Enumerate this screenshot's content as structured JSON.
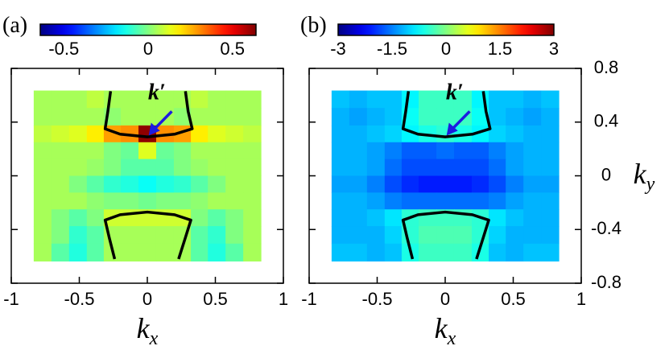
{
  "chart_data": [
    {
      "type": "heatmap",
      "panel_label": "(a)",
      "colormap": "jet",
      "xlim": [
        -1,
        1
      ],
      "ylim": [
        -0.8,
        0.8
      ],
      "xticks": [
        -1,
        -0.5,
        0,
        0.5,
        1
      ],
      "yticks": [
        -0.8,
        -0.4,
        0,
        0.4,
        0.8
      ],
      "clim": [
        -0.64,
        0.64
      ],
      "cticks": [
        -0.5,
        0,
        0.5
      ],
      "xlabel": {
        "base": "k",
        "sub": "x"
      },
      "annotation": "k′",
      "annotation_color": "#1c1ce0",
      "contour_color": "#000000",
      "x": [
        -0.77,
        -0.64,
        -0.51,
        -0.38,
        -0.26,
        -0.13,
        0,
        0.13,
        0.26,
        0.38,
        0.51,
        0.64,
        0.77
      ],
      "y": [
        0.57,
        0.44,
        0.31,
        0.19,
        0.06,
        -0.06,
        -0.19,
        -0.31,
        -0.44,
        -0.57
      ],
      "z": [
        [
          0.05,
          0.05,
          0.05,
          0.08,
          0.05,
          0.05,
          0.05,
          0.05,
          0.05,
          0.08,
          0.05,
          0.05,
          0.05
        ],
        [
          0.05,
          0.05,
          0.05,
          0.05,
          0.02,
          0.05,
          0.05,
          0.05,
          0.02,
          0.05,
          0.05,
          0.05,
          0.05
        ],
        [
          0.08,
          0.1,
          0.12,
          0.18,
          0.28,
          0.3,
          0.62,
          0.3,
          0.28,
          0.18,
          0.12,
          0.1,
          0.08
        ],
        [
          0.05,
          0.05,
          0.05,
          0.05,
          0.0,
          -0.03,
          0.12,
          -0.03,
          0.0,
          0.05,
          0.05,
          0.05,
          0.05
        ],
        [
          0.05,
          0.05,
          0.05,
          0.03,
          0.0,
          -0.05,
          -0.05,
          -0.05,
          0.0,
          0.03,
          0.05,
          0.05,
          0.05
        ],
        [
          0.05,
          0.05,
          0.0,
          -0.05,
          -0.1,
          -0.12,
          -0.15,
          -0.12,
          -0.1,
          -0.05,
          0.0,
          0.05,
          0.05
        ],
        [
          0.05,
          0.05,
          0.05,
          0.02,
          0.0,
          0.0,
          -0.02,
          0.0,
          0.0,
          0.02,
          0.05,
          0.05,
          0.05
        ],
        [
          0.05,
          0.0,
          -0.05,
          0.0,
          0.1,
          0.1,
          0.1,
          0.1,
          0.1,
          0.0,
          -0.05,
          0.0,
          0.05
        ],
        [
          0.05,
          0.0,
          -0.1,
          -0.05,
          0.05,
          0.05,
          0.05,
          0.05,
          0.05,
          -0.05,
          -0.1,
          0.0,
          0.05
        ],
        [
          0.05,
          -0.05,
          -0.12,
          -0.05,
          0.05,
          0.05,
          0.05,
          0.05,
          0.05,
          -0.05,
          -0.12,
          -0.05,
          0.05
        ]
      ],
      "contours": [
        {
          "x": [
            -0.27,
            -0.29,
            -0.31,
            -0.2,
            0,
            0.2,
            0.33,
            0.3,
            0.28
          ],
          "y": [
            0.63,
            0.48,
            0.35,
            0.31,
            0.29,
            0.31,
            0.35,
            0.48,
            0.63
          ]
        },
        {
          "x": [
            -0.24,
            -0.28,
            -0.31,
            -0.2,
            0,
            0.2,
            0.32,
            0.28,
            0.23
          ],
          "y": [
            -0.62,
            -0.46,
            -0.33,
            -0.29,
            -0.27,
            -0.29,
            -0.33,
            -0.46,
            -0.62
          ]
        }
      ]
    },
    {
      "type": "heatmap",
      "panel_label": "(b)",
      "colormap": "jet",
      "xlim": [
        -1,
        1
      ],
      "ylim": [
        -0.8,
        0.8
      ],
      "xticks": [
        -1,
        -0.5,
        0,
        0.5,
        1
      ],
      "yticks": [
        -0.8,
        -0.4,
        0,
        0.4,
        0.8
      ],
      "ytick_side": "right",
      "clim": [
        -3,
        3
      ],
      "cticks": [
        -3,
        -1.5,
        0,
        1.5,
        3
      ],
      "xlabel": {
        "base": "k",
        "sub": "x"
      },
      "ylabel": {
        "base": "k",
        "sub": "y"
      },
      "annotation": "k′",
      "annotation_color": "#1c1ce0",
      "contour_color": "#000000",
      "x": [
        -0.77,
        -0.64,
        -0.51,
        -0.38,
        -0.26,
        -0.13,
        0,
        0.13,
        0.26,
        0.38,
        0.51,
        0.64,
        0.77
      ],
      "y": [
        0.57,
        0.44,
        0.31,
        0.19,
        0.06,
        -0.06,
        -0.19,
        -0.31,
        -0.44,
        -0.57
      ],
      "z": [
        [
          -1.1,
          -1.2,
          -1.1,
          -1.1,
          -0.8,
          -0.4,
          -0.4,
          -0.4,
          -0.8,
          -1.1,
          -1.1,
          -1.2,
          -1.1
        ],
        [
          -1.2,
          -1.3,
          -1.2,
          -1.1,
          -0.7,
          -0.4,
          -0.4,
          -0.4,
          -0.7,
          -1.1,
          -1.2,
          -1.3,
          -1.2
        ],
        [
          -1.2,
          -1.2,
          -1.1,
          -1.0,
          -0.8,
          -0.6,
          -0.5,
          -0.6,
          -0.8,
          -1.0,
          -1.1,
          -1.2,
          -1.2
        ],
        [
          -1.2,
          -1.2,
          -1.3,
          -1.5,
          -1.7,
          -1.7,
          -1.6,
          -1.7,
          -1.7,
          -1.5,
          -1.3,
          -1.2,
          -1.2
        ],
        [
          -1.2,
          -1.2,
          -1.3,
          -1.6,
          -1.8,
          -1.8,
          -1.8,
          -1.8,
          -1.8,
          -1.6,
          -1.3,
          -1.2,
          -1.2
        ],
        [
          -1.3,
          -1.3,
          -1.5,
          -1.8,
          -2.0,
          -2.1,
          -2.1,
          -2.1,
          -2.0,
          -1.8,
          -1.5,
          -1.3,
          -1.3
        ],
        [
          -1.2,
          -1.2,
          -1.3,
          -1.5,
          -1.6,
          -1.6,
          -1.6,
          -1.6,
          -1.6,
          -1.5,
          -1.3,
          -1.2,
          -1.2
        ],
        [
          -1.2,
          -1.2,
          -1.1,
          -0.9,
          -0.5,
          -0.4,
          -0.4,
          -0.4,
          -0.5,
          -0.9,
          -1.1,
          -1.2,
          -1.2
        ],
        [
          -1.2,
          -1.2,
          -1.2,
          -1.0,
          -0.5,
          -0.3,
          -0.3,
          -0.3,
          -0.5,
          -1.0,
          -1.2,
          -1.2,
          -1.2
        ],
        [
          -1.1,
          -1.1,
          -1.2,
          -1.1,
          -0.6,
          -0.4,
          -0.4,
          -0.4,
          -0.6,
          -1.1,
          -1.2,
          -1.1,
          -1.1
        ]
      ],
      "contours": [
        {
          "x": [
            -0.27,
            -0.29,
            -0.31,
            -0.2,
            0,
            0.2,
            0.33,
            0.3,
            0.28
          ],
          "y": [
            0.63,
            0.48,
            0.35,
            0.31,
            0.29,
            0.31,
            0.35,
            0.48,
            0.63
          ]
        },
        {
          "x": [
            -0.24,
            -0.28,
            -0.31,
            -0.2,
            0,
            0.2,
            0.32,
            0.28,
            0.23
          ],
          "y": [
            -0.62,
            -0.46,
            -0.33,
            -0.29,
            -0.27,
            -0.29,
            -0.33,
            -0.46,
            -0.62
          ]
        }
      ]
    }
  ]
}
